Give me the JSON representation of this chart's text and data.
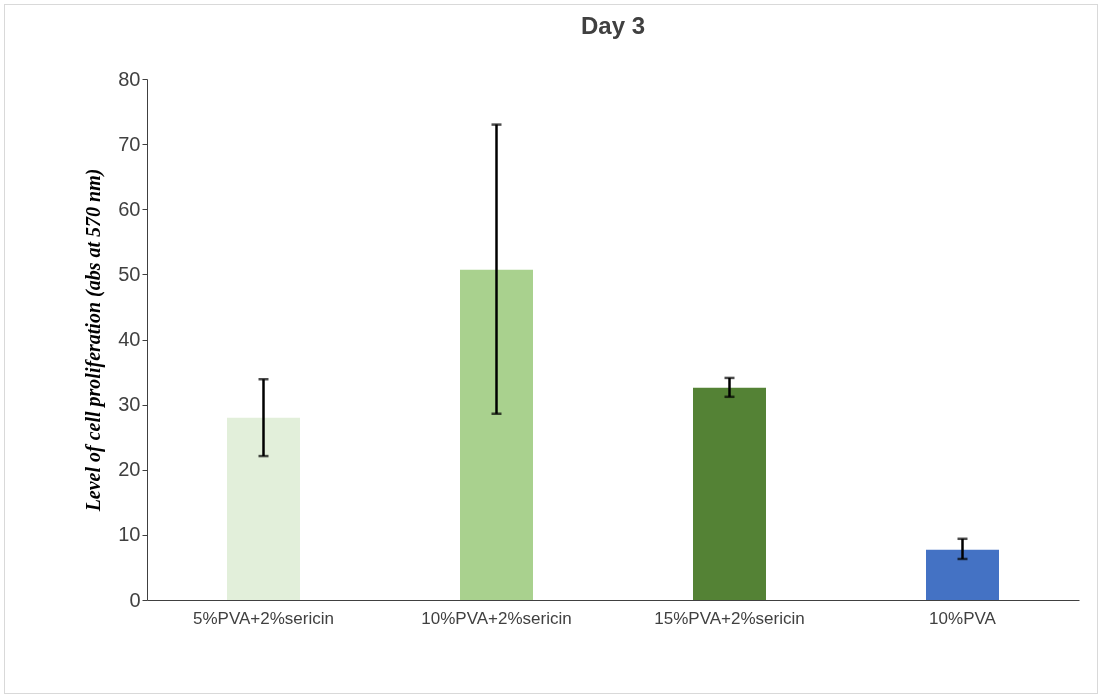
{
  "chart_data": {
    "type": "bar",
    "title": "Day 3",
    "ylabel": "Level of cell proliferation (abs at 570 nm)",
    "categories": [
      "5%PVA+2%sericin",
      "10%PVA+2%sericin",
      "15%PVA+2%sericin",
      "10%PVA"
    ],
    "values": [
      28,
      50.7,
      32.6,
      7.7
    ],
    "colors": [
      "#e2efda",
      "#a9d18e",
      "#548235",
      "#4472c4"
    ],
    "errors": [
      [
        22.1,
        33.9
      ],
      [
        28.6,
        73
      ],
      [
        31.2,
        34.1
      ],
      [
        6.3,
        9.4
      ]
    ],
    "ylim": [
      0,
      80
    ],
    "yticks": [
      0,
      10,
      20,
      30,
      40,
      50,
      60,
      70,
      80
    ],
    "grid": false
  }
}
